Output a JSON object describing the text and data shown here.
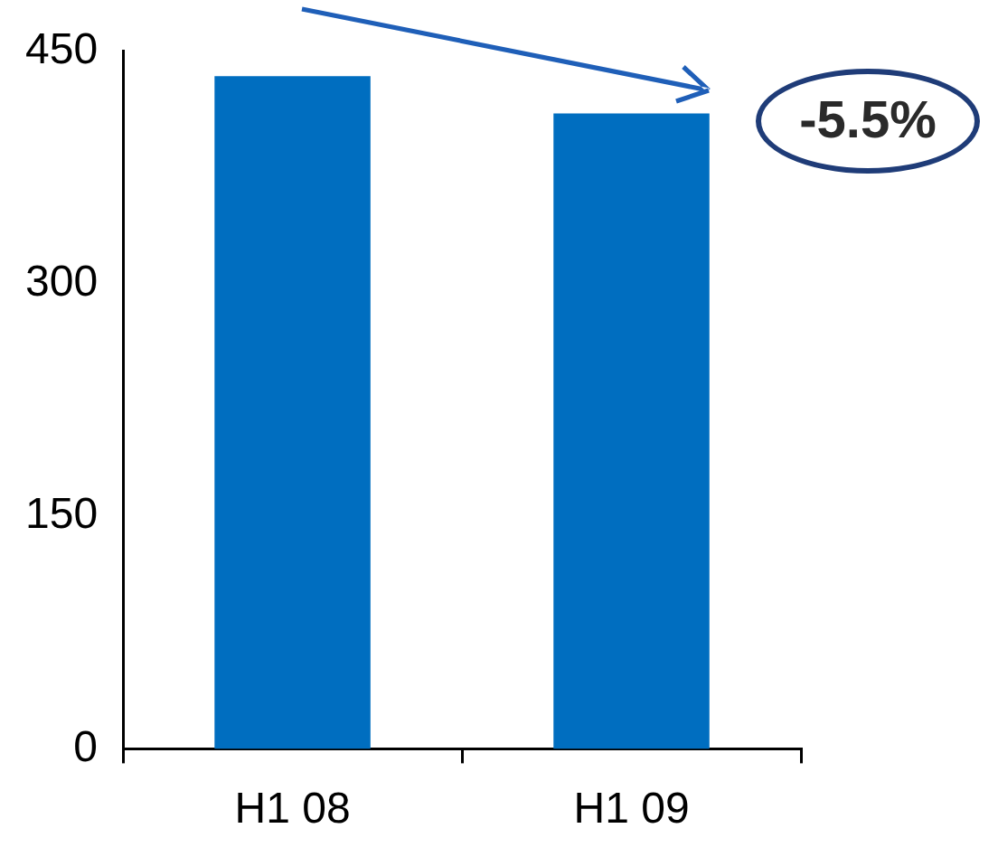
{
  "chart_data": {
    "type": "bar",
    "categories": [
      "H1 08",
      "H1 09"
    ],
    "values": [
      434,
      410
    ],
    "color": "#006ec0",
    "ylim": [
      0,
      450
    ],
    "yticks": [
      0,
      150,
      300,
      450
    ],
    "grid": false,
    "legend": false,
    "annotations": [
      "-5.5%"
    ]
  }
}
